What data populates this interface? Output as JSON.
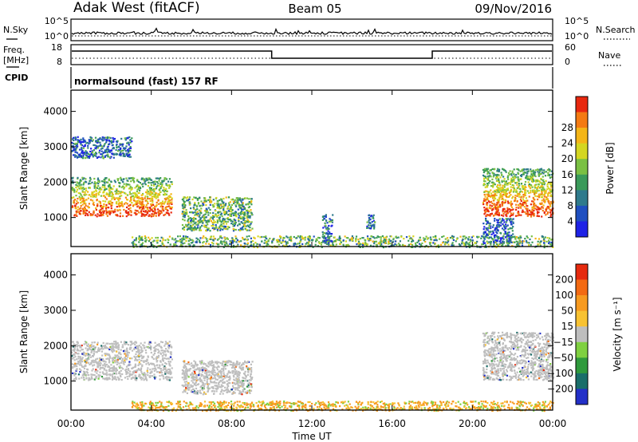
{
  "header": {
    "station": "Adak West (fitACF)",
    "beam": "Beam 05",
    "date": "09/Nov/2016"
  },
  "strips": {
    "noise": {
      "left_label": "N.Sky",
      "right_label": "N.Search",
      "left_ticks": [
        "10^5",
        "10^0"
      ],
      "right_ticks": [
        "10^5",
        "10^0"
      ]
    },
    "freq": {
      "left_label_1": "Freq.",
      "left_label_2": "[MHz]",
      "right_label": "Nave",
      "left_ticks": [
        "18",
        "8"
      ],
      "right_ticks": [
        "60",
        "0"
      ]
    },
    "cpid": {
      "label": "CPID",
      "text": "normalsound (fast) 157 RF"
    }
  },
  "chart_data": [
    {
      "type": "heatmap",
      "panel": "power",
      "ylabel": "Slant Range [km]",
      "yticks": [
        "1000",
        "2000",
        "3000",
        "4000"
      ],
      "ylim": [
        180,
        4600
      ],
      "xlim": [
        0,
        24
      ],
      "colorbar": {
        "label": "Power [dB]",
        "ticks": [
          "4",
          "8",
          "12",
          "16",
          "20",
          "24",
          "28"
        ],
        "colors": [
          "#1e22e6",
          "#1f4fc0",
          "#2f7a8c",
          "#3a9a5a",
          "#7ac043",
          "#d4d621",
          "#f4b517",
          "#f47a12",
          "#e8280f"
        ]
      },
      "echo_regions": [
        {
          "t0": 0.0,
          "t1": 5.0,
          "r0": 1050,
          "r1": 2150,
          "level": "high"
        },
        {
          "t0": 0.0,
          "t1": 3.0,
          "r0": 2700,
          "r1": 3300,
          "level": "low"
        },
        {
          "t0": 5.5,
          "t1": 9.0,
          "r0": 650,
          "r1": 1600,
          "level": "medium"
        },
        {
          "t0": 3.0,
          "t1": 24.0,
          "r0": 180,
          "r1": 500,
          "level": "medium"
        },
        {
          "t0": 12.5,
          "t1": 13.0,
          "r0": 300,
          "r1": 1100,
          "level": "low"
        },
        {
          "t0": 14.7,
          "t1": 15.1,
          "r0": 700,
          "r1": 1100,
          "level": "low"
        },
        {
          "t0": 20.5,
          "t1": 24.0,
          "r0": 1050,
          "r1": 2400,
          "level": "high"
        },
        {
          "t0": 20.5,
          "t1": 22.0,
          "r0": 300,
          "r1": 1000,
          "level": "low"
        }
      ]
    },
    {
      "type": "heatmap",
      "panel": "velocity",
      "ylabel": "Slant Range [km]",
      "yticks": [
        "1000",
        "2000",
        "3000",
        "4000"
      ],
      "ylim": [
        180,
        4600
      ],
      "xlim": [
        0,
        24
      ],
      "colorbar": {
        "label": "Velocity [m s⁻¹]",
        "ticks": [
          "200",
          "100",
          "50",
          "15",
          "−15",
          "−50",
          "−100",
          "−200"
        ],
        "colors": [
          "#2330c8",
          "#1a6e6a",
          "#2f9a3c",
          "#7fd040",
          "#bebebe",
          "#f8c232",
          "#f79a1f",
          "#f36a12",
          "#e62a0e"
        ]
      },
      "echo_regions": [
        {
          "t0": 0.0,
          "t1": 5.0,
          "r0": 1050,
          "r1": 2150,
          "level": "grey"
        },
        {
          "t0": 5.5,
          "t1": 9.0,
          "r0": 650,
          "r1": 1600,
          "level": "grey"
        },
        {
          "t0": 3.0,
          "t1": 24.0,
          "r0": 180,
          "r1": 450,
          "level": "orange"
        },
        {
          "t0": 20.5,
          "t1": 24.0,
          "r0": 1050,
          "r1": 2400,
          "level": "grey"
        }
      ]
    }
  ],
  "xaxis": {
    "label": "Time UT",
    "ticks": [
      "00:00",
      "04:00",
      "08:00",
      "12:00",
      "16:00",
      "20:00",
      "00:00"
    ]
  }
}
